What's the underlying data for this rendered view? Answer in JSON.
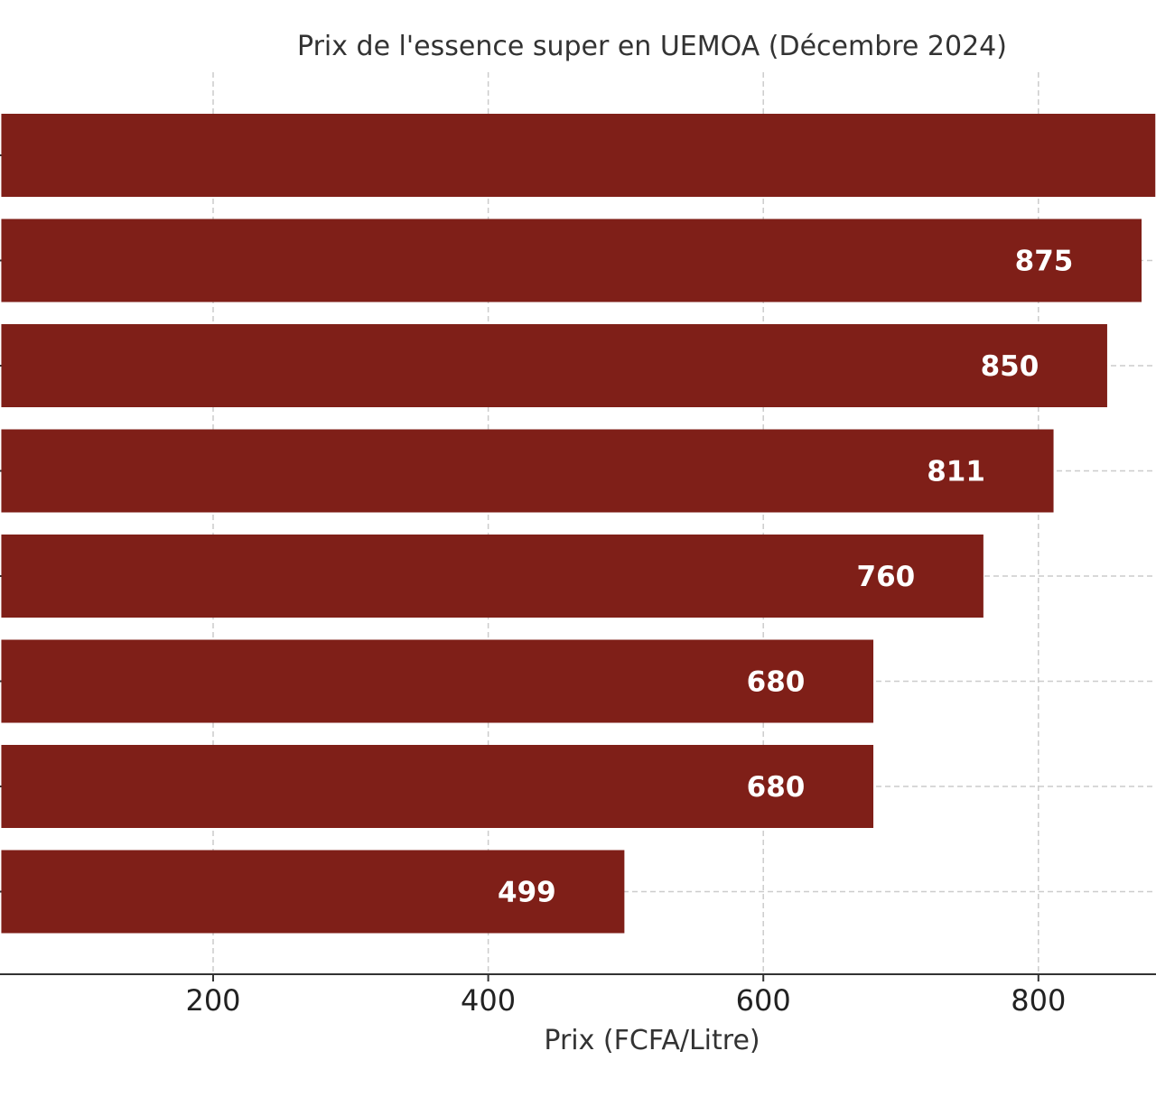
{
  "chart_data": {
    "type": "bar",
    "orientation": "horizontal",
    "title": "Prix de l'essence super en UEMOA (Décembre 2024)",
    "xlabel": "Prix (FCFA/Litre)",
    "ylabel": "",
    "categories": [
      "",
      "",
      "",
      "",
      "",
      "",
      "",
      ""
    ],
    "values": [
      885,
      875,
      850,
      811,
      760,
      680,
      680,
      499
    ],
    "data_labels": [
      "",
      "875",
      "850",
      "811",
      "760",
      "680",
      "680",
      "499"
    ],
    "x_ticks": [
      200,
      400,
      600,
      800
    ],
    "x_tick_labels": [
      "200",
      "400",
      "600",
      "800"
    ],
    "xlim": [
      46,
      885
    ],
    "grid": true,
    "bar_color": "#7f1f18"
  }
}
